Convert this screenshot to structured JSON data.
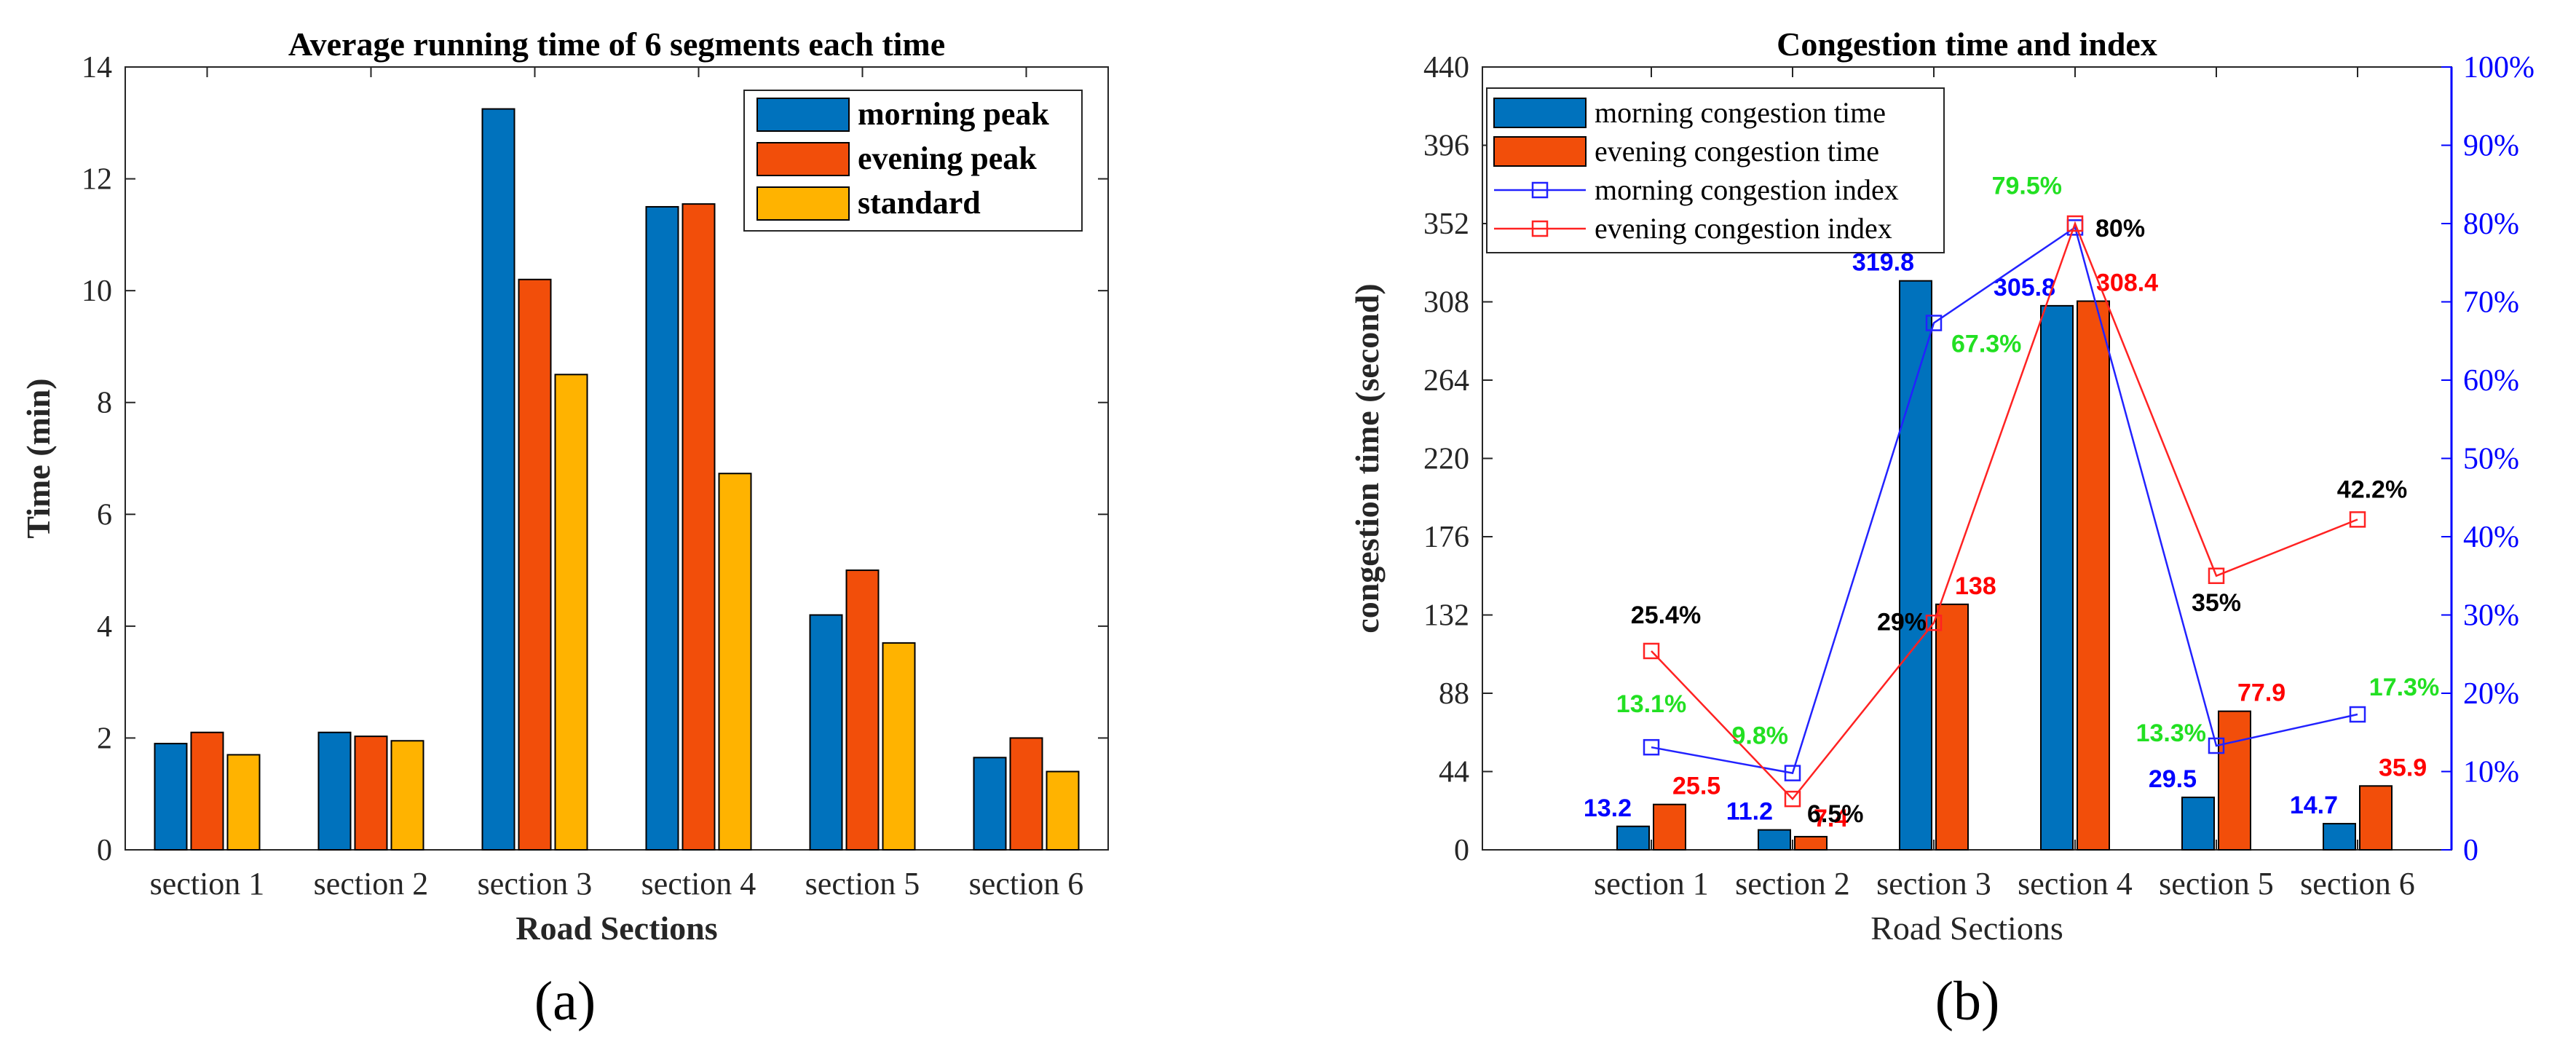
{
  "chart_data": [
    {
      "panel": "a",
      "type": "bar",
      "title": "Average running time of 6 segments each time",
      "xlabel": "Road Sections",
      "ylabel": "Time (min)",
      "ylim": [
        0,
        14
      ],
      "yticks": [
        0,
        2,
        4,
        6,
        8,
        10,
        12,
        14
      ],
      "categories": [
        "section 1",
        "section 2",
        "section 3",
        "section 4",
        "section 5",
        "section 6"
      ],
      "legend_position": "top-right",
      "series": [
        {
          "name": "morning peak",
          "color": "#0072BD",
          "values": [
            1.9,
            2.1,
            13.25,
            11.5,
            4.2,
            1.65
          ]
        },
        {
          "name": "evening peak",
          "color": "#F24E0A",
          "values": [
            2.1,
            2.03,
            10.2,
            11.55,
            5.0,
            2.0
          ]
        },
        {
          "name": "standard",
          "color": "#FFB300",
          "values": [
            1.7,
            1.95,
            8.5,
            6.73,
            3.7,
            1.4
          ]
        }
      ],
      "caption": "(a)"
    },
    {
      "panel": "b",
      "type": "bar+line",
      "title": "Congestion time and index",
      "xlabel": "Road Sections",
      "ylabel": "congestion time (second)",
      "ylim": [
        0,
        440
      ],
      "yticks": [
        0,
        44,
        88,
        132,
        176,
        220,
        264,
        308,
        352,
        396,
        440
      ],
      "y2lim": [
        0,
        100
      ],
      "y2ticks": [
        "0",
        "10%",
        "20%",
        "30%",
        "40%",
        "50%",
        "60%",
        "70%",
        "80%",
        "90%",
        "100%"
      ],
      "categories": [
        "section 1",
        "section 2",
        "section 3",
        "section 4",
        "section 5",
        "section 6"
      ],
      "legend_position": "top-left",
      "bars": [
        {
          "name": "morning congestion time",
          "color": "#0072BD",
          "values": [
            13.2,
            11.2,
            319.8,
            305.8,
            29.5,
            14.7
          ],
          "labels": [
            "13.2",
            "11.2",
            "319.8",
            "305.8",
            "29.5",
            "14.7"
          ],
          "label_color": "#0000FF"
        },
        {
          "name": "evening congestion time",
          "color": "#F24E0A",
          "values": [
            25.5,
            7.4,
            138,
            308.4,
            77.9,
            35.9
          ],
          "labels": [
            "25.5",
            "7.4",
            "138",
            "308.4",
            "77.9",
            "35.9"
          ],
          "label_color": "#FF0000"
        }
      ],
      "lines": [
        {
          "name": "morning congestion index",
          "color": "#2222FF",
          "values": [
            13.1,
            9.8,
            67.3,
            79.5,
            13.3,
            17.3
          ],
          "labels": [
            "13.1%",
            "9.8%",
            "67.3%",
            "79.5%",
            "13.3%",
            "17.3%"
          ],
          "label_color": "#22E022"
        },
        {
          "name": "evening congestion index",
          "color": "#FF2222",
          "values": [
            25.4,
            6.5,
            29,
            80,
            35,
            42.2
          ],
          "labels": [
            "25.4%",
            "6.5%",
            "29%",
            "80%",
            "35%",
            "42.2%"
          ],
          "label_color": "#000000"
        }
      ],
      "caption": "(b)"
    }
  ]
}
